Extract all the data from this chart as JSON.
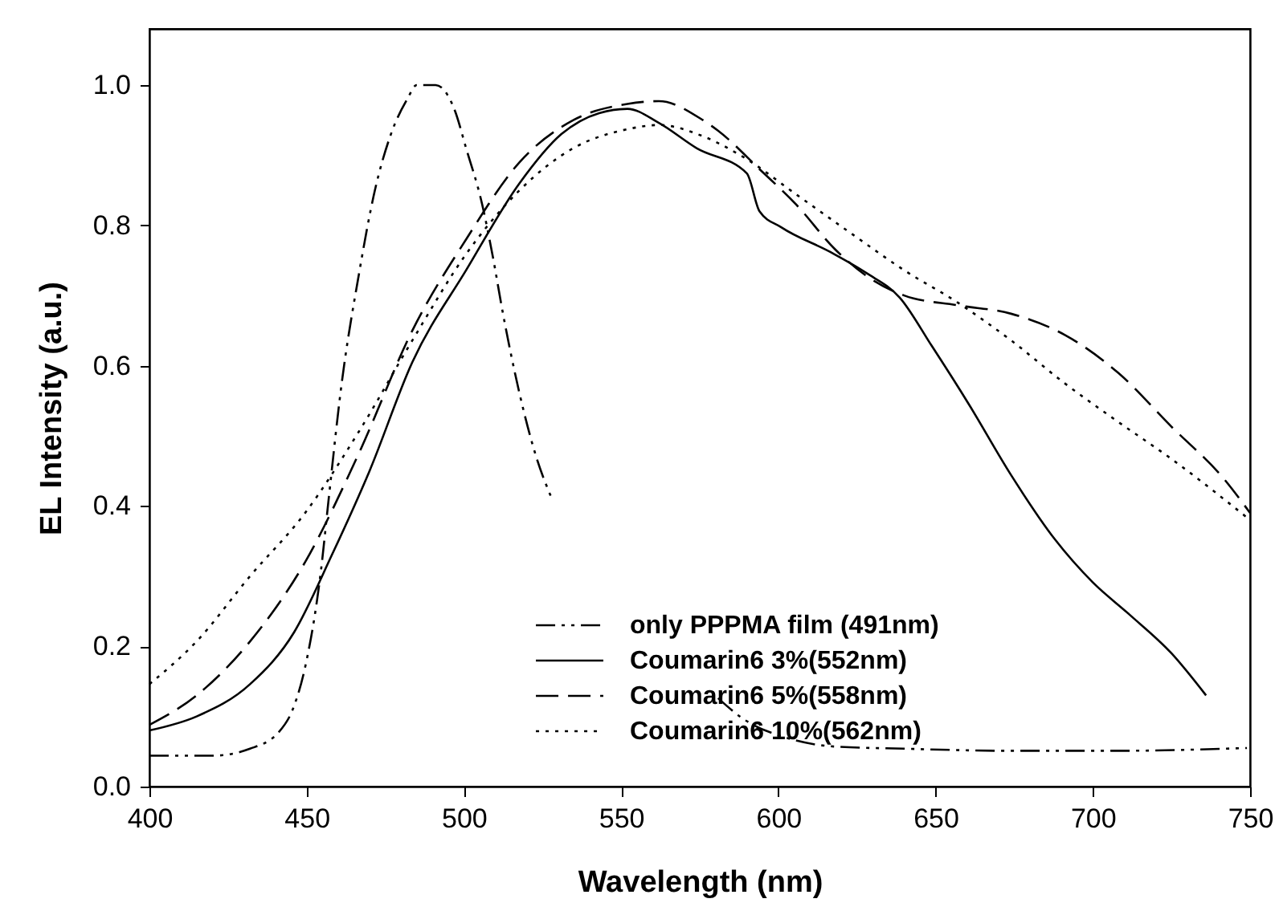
{
  "chart_data": {
    "type": "line",
    "xlabel": "Wavelength (nm)",
    "ylabel": "EL Intensity (a.u.)",
    "xlim": [
      400,
      750
    ],
    "xticks": [
      400,
      450,
      500,
      550,
      600,
      650,
      700,
      750
    ],
    "ylim": [
      0,
      1.08
    ],
    "yticks": [
      {
        "value": 0,
        "label": "0.0"
      },
      {
        "value": 0.2,
        "label": "0.2"
      },
      {
        "value": 0.4,
        "label": "0.4"
      },
      {
        "value": 0.6,
        "label": "0.6"
      },
      {
        "value": 0.8,
        "label": "0.8"
      },
      {
        "value": 1,
        "label": "1.0"
      }
    ],
    "grid": false,
    "legend": "bottom",
    "marker": "none",
    "series": [
      {
        "name": "only PPPMA film (491nm)",
        "color": "#000000",
        "line_style": "dashdot",
        "x": [
          400,
          420,
          432,
          441,
          446,
          449.5,
          454.6,
          457,
          461,
          466.6,
          471.7,
          476.8,
          482,
          485,
          491,
          497,
          500.7,
          505.8,
          509,
          512.6,
          517.7,
          523,
          528,
          555,
          580.8,
          589,
          603,
          618,
          640,
          674,
          708,
          749
        ],
        "values": [
          0.044,
          0.044,
          0.054,
          0.077,
          0.115,
          0.17,
          0.31,
          0.41,
          0.57,
          0.73,
          0.85,
          0.93,
          0.98,
          1.0,
          1.0,
          0.965,
          0.91,
          0.83,
          0.76,
          0.67,
          0.56,
          0.47,
          0.41,
          null,
          0.126,
          0.096,
          0.069,
          0.057,
          0.054,
          0.051,
          0.051,
          0.055
        ]
      },
      {
        "name": "Coumarin6 3%(552nm)",
        "color": "#000000",
        "line_style": "solid",
        "x": [
          400,
          415,
          432,
          446,
          458,
          470,
          483.6,
          500.7,
          517.7,
          531,
          543,
          552,
          562,
          574,
          590,
          594,
          601,
          616.5,
          628,
          638.6,
          648.8,
          660.7,
          674,
          688,
          700,
          711.7,
          725,
          736
        ],
        "values": [
          0.08,
          0.1,
          0.146,
          0.22,
          0.33,
          0.45,
          0.605,
          0.736,
          0.86,
          0.93,
          0.96,
          0.966,
          0.946,
          0.91,
          0.874,
          0.82,
          0.797,
          0.762,
          0.732,
          0.697,
          0.628,
          0.544,
          0.444,
          0.352,
          0.291,
          0.245,
          0.19,
          0.13
        ]
      },
      {
        "name": "Coumarin6 5%(558nm)",
        "color": "#000000",
        "line_style": "dashed",
        "x": [
          400,
          415,
          432,
          449.5,
          466.6,
          483.6,
          500.7,
          517.7,
          534.8,
          552,
          562,
          576,
          580.8,
          594,
          606,
          618,
          628,
          640,
          657,
          674,
          691,
          708,
          725,
          742,
          750
        ],
        "values": [
          0.088,
          0.13,
          0.207,
          0.32,
          0.475,
          0.65,
          0.78,
          0.89,
          0.95,
          0.973,
          0.977,
          0.95,
          0.935,
          0.88,
          0.828,
          0.766,
          0.728,
          0.7,
          0.686,
          0.674,
          0.644,
          0.59,
          0.513,
          0.437,
          0.39
        ]
      },
      {
        "name": "Coumarin6 10%(562nm)",
        "color": "#000000",
        "line_style": "dotted",
        "x": [
          400,
          415,
          432,
          449.5,
          466.6,
          483.6,
          500.7,
          517.7,
          534.8,
          552,
          562,
          576,
          589,
          606,
          623,
          640,
          657,
          674,
          691,
          708,
          725,
          750
        ],
        "values": [
          0.146,
          0.207,
          0.3,
          0.39,
          0.506,
          0.636,
          0.759,
          0.85,
          0.91,
          0.937,
          0.943,
          0.927,
          0.897,
          0.843,
          0.789,
          0.736,
          0.69,
          0.636,
          0.575,
          0.52,
          0.467,
          0.38
        ]
      }
    ]
  }
}
